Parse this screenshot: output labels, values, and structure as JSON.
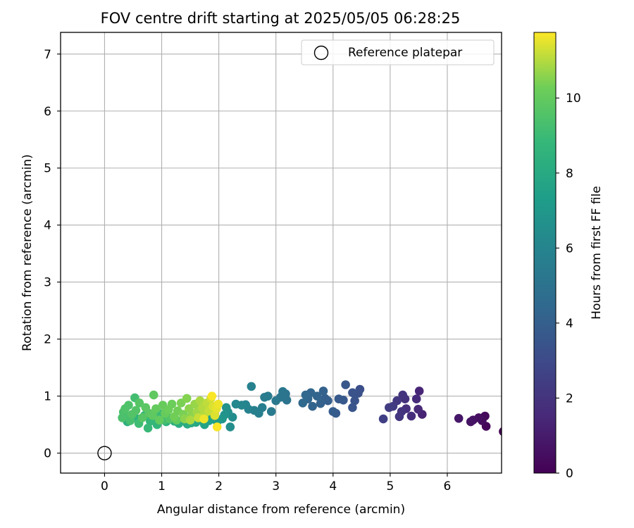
{
  "chart_data": {
    "type": "scatter",
    "title": "FOV centre drift starting at 2025/05/05 06:28:25",
    "xlabel": "Angular distance from reference (arcmin)",
    "ylabel": "Rotation from reference (arcmin)",
    "xlim": [
      -0.77,
      6.95
    ],
    "ylim": [
      -0.35,
      7.38
    ],
    "xticks": [
      0,
      1,
      2,
      3,
      4,
      5,
      6
    ],
    "yticks": [
      0,
      1,
      2,
      3,
      4,
      5,
      6,
      7
    ],
    "grid": true,
    "legend": {
      "position": "top-right",
      "entries": [
        "Reference platepar"
      ]
    },
    "reference_point": {
      "x": 0,
      "y": 0,
      "label": "Reference platepar"
    },
    "colorbar": {
      "label": "Hours from first FF file",
      "min": 0,
      "max": 11.75,
      "ticks": [
        0,
        2,
        4,
        6,
        8,
        10
      ],
      "colormap": "viridis"
    },
    "series": [
      {
        "columns": [
          "x",
          "y",
          "hours"
        ],
        "points": [
          [
            6.98,
            0.38,
            0.0
          ],
          [
            6.68,
            0.47,
            0.2
          ],
          [
            6.66,
            0.65,
            0.3
          ],
          [
            6.61,
            0.57,
            0.4
          ],
          [
            6.55,
            0.62,
            0.5
          ],
          [
            6.45,
            0.58,
            0.6
          ],
          [
            6.41,
            0.55,
            0.7
          ],
          [
            6.2,
            0.61,
            0.8
          ],
          [
            5.56,
            0.68,
            1.3
          ],
          [
            5.51,
            1.09,
            1.4
          ],
          [
            5.49,
            0.77,
            1.5
          ],
          [
            5.46,
            0.95,
            1.6
          ],
          [
            5.37,
            0.65,
            1.7
          ],
          [
            5.28,
            0.78,
            1.8
          ],
          [
            5.26,
            0.95,
            1.9
          ],
          [
            5.22,
            1.02,
            2.0
          ],
          [
            5.2,
            0.73,
            2.0
          ],
          [
            5.16,
            0.64,
            2.1
          ],
          [
            5.12,
            0.92,
            2.2
          ],
          [
            5.05,
            0.82,
            2.3
          ],
          [
            4.98,
            0.8,
            2.4
          ],
          [
            4.88,
            0.6,
            2.5
          ],
          [
            4.47,
            1.12,
            3.2
          ],
          [
            4.44,
            1.05,
            3.3
          ],
          [
            4.38,
            0.92,
            3.4
          ],
          [
            4.34,
            1.06,
            3.4
          ],
          [
            4.34,
            0.8,
            3.5
          ],
          [
            4.22,
            1.2,
            3.6
          ],
          [
            4.18,
            0.93,
            3.7
          ],
          [
            4.1,
            0.95,
            3.7
          ],
          [
            4.05,
            0.7,
            3.8
          ],
          [
            4.0,
            0.73,
            3.9
          ],
          [
            3.91,
            0.92,
            4.0
          ],
          [
            3.86,
            0.96,
            4.0
          ],
          [
            3.83,
            1.09,
            4.1
          ],
          [
            3.78,
            0.87,
            4.1
          ],
          [
            3.72,
            1.0,
            4.2
          ],
          [
            3.64,
            0.82,
            4.2
          ],
          [
            3.61,
            1.06,
            4.3
          ],
          [
            3.56,
            0.95,
            4.3
          ],
          [
            3.52,
            1.02,
            4.4
          ],
          [
            3.47,
            0.88,
            4.5
          ],
          [
            3.19,
            0.93,
            5.1
          ],
          [
            3.17,
            1.04,
            5.1
          ],
          [
            3.12,
            1.08,
            5.2
          ],
          [
            3.08,
            0.98,
            5.2
          ],
          [
            3.0,
            0.92,
            5.3
          ],
          [
            2.92,
            0.73,
            5.4
          ],
          [
            2.86,
            1.0,
            5.5
          ],
          [
            2.8,
            0.98,
            5.5
          ],
          [
            2.76,
            0.8,
            5.6
          ],
          [
            2.7,
            0.7,
            5.7
          ],
          [
            2.62,
            0.75,
            5.7
          ],
          [
            2.57,
            1.17,
            5.8
          ],
          [
            2.52,
            0.77,
            5.9
          ],
          [
            2.47,
            0.85,
            6.0
          ],
          [
            2.4,
            0.84,
            6.1
          ],
          [
            2.3,
            0.86,
            6.2
          ],
          [
            2.24,
            0.63,
            6.4
          ],
          [
            2.2,
            0.46,
            6.5
          ],
          [
            2.16,
            0.72,
            6.6
          ],
          [
            2.13,
            0.8,
            6.7
          ],
          [
            2.1,
            0.67,
            6.8
          ],
          [
            2.06,
            0.6,
            6.9
          ],
          [
            1.97,
            0.55,
            7.2
          ],
          [
            1.89,
            0.63,
            7.4
          ],
          [
            1.83,
            0.57,
            7.5
          ],
          [
            1.75,
            0.5,
            7.6
          ],
          [
            1.68,
            0.58,
            7.8
          ],
          [
            1.6,
            0.54,
            7.9
          ],
          [
            1.52,
            0.53,
            8.0
          ],
          [
            1.45,
            0.51,
            8.1
          ],
          [
            1.38,
            0.58,
            8.1
          ],
          [
            1.3,
            0.52,
            8.2
          ],
          [
            1.22,
            0.56,
            8.3
          ],
          [
            1.15,
            0.61,
            8.4
          ],
          [
            1.08,
            0.55,
            8.5
          ],
          [
            1.0,
            0.62,
            8.6
          ],
          [
            0.92,
            0.5,
            8.7
          ],
          [
            0.83,
            0.58,
            8.8
          ],
          [
            0.76,
            0.44,
            8.9
          ],
          [
            0.69,
            0.64,
            9.0
          ],
          [
            0.6,
            0.52,
            9.1
          ],
          [
            0.53,
            0.97,
            9.2
          ],
          [
            0.45,
            0.57,
            9.3
          ],
          [
            0.38,
            0.65,
            9.3
          ],
          [
            0.33,
            0.72,
            9.4
          ],
          [
            0.31,
            0.62,
            9.4
          ],
          [
            0.36,
            0.78,
            9.5
          ],
          [
            0.42,
            0.84,
            9.5
          ],
          [
            0.48,
            0.68,
            9.6
          ],
          [
            0.55,
            0.75,
            9.6
          ],
          [
            0.61,
            0.88,
            9.7
          ],
          [
            0.66,
            0.62,
            9.7
          ],
          [
            0.72,
            0.8,
            9.8
          ],
          [
            0.78,
            0.7,
            9.8
          ],
          [
            0.86,
            1.02,
            9.9
          ],
          [
            0.84,
            0.66,
            9.9
          ],
          [
            0.9,
            0.78,
            10.0
          ],
          [
            0.96,
            0.58,
            10.0
          ],
          [
            1.02,
            0.84,
            10.1
          ],
          [
            1.06,
            0.7,
            10.1
          ],
          [
            1.12,
            0.76,
            10.2
          ],
          [
            1.18,
            0.86,
            10.2
          ],
          [
            1.22,
            0.64,
            10.3
          ],
          [
            1.28,
            0.74,
            10.3
          ],
          [
            1.34,
            0.88,
            10.4
          ],
          [
            1.38,
            0.68,
            10.4
          ],
          [
            1.44,
            0.96,
            10.5
          ],
          [
            1.48,
            0.78,
            10.6
          ],
          [
            1.53,
            0.66,
            10.6
          ],
          [
            1.58,
            0.86,
            10.7
          ],
          [
            1.62,
            0.72,
            10.8
          ],
          [
            1.67,
            0.92,
            10.9
          ],
          [
            1.71,
            0.8,
            11.0
          ],
          [
            1.75,
            0.68,
            11.0
          ],
          [
            1.79,
            0.88,
            11.1
          ],
          [
            1.83,
            0.74,
            11.2
          ],
          [
            1.86,
            0.96,
            11.3
          ],
          [
            1.9,
            0.82,
            11.4
          ],
          [
            1.93,
            0.66,
            11.4
          ],
          [
            1.96,
            0.78,
            11.5
          ],
          [
            1.99,
            0.86,
            11.6
          ],
          [
            1.97,
            0.46,
            11.7
          ],
          [
            1.88,
            1.0,
            11.7
          ],
          [
            1.74,
            0.6,
            11.6
          ],
          [
            1.64,
            0.62,
            11.2
          ],
          [
            1.5,
            0.58,
            10.9
          ],
          [
            1.4,
            0.6,
            10.6
          ],
          [
            1.26,
            0.58,
            10.0
          ],
          [
            1.14,
            0.6,
            9.6
          ],
          [
            1.04,
            0.58,
            9.2
          ],
          [
            0.95,
            0.7,
            9.0
          ],
          [
            0.8,
            0.56,
            8.7
          ],
          [
            0.7,
            0.66,
            8.6
          ],
          [
            0.58,
            0.6,
            8.5
          ],
          [
            0.47,
            0.62,
            8.4
          ],
          [
            0.4,
            0.55,
            8.3
          ],
          [
            0.35,
            0.66,
            8.2
          ]
        ]
      }
    ]
  }
}
